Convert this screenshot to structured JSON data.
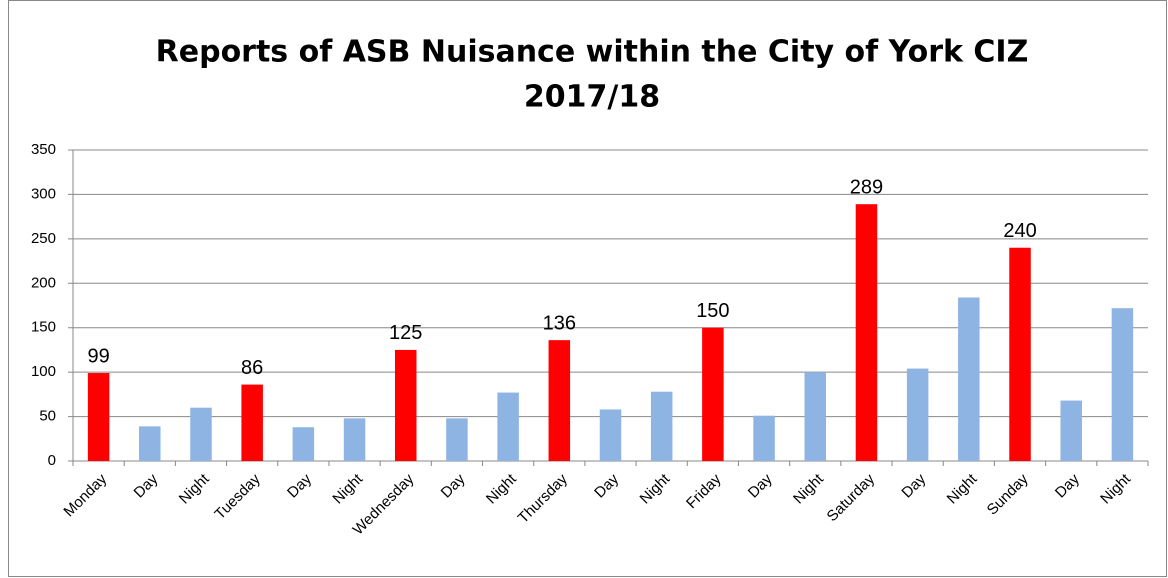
{
  "chart_data": {
    "type": "bar",
    "title": [
      "Reports of ASB Nuisance within the City of York CIZ",
      "2017/18"
    ],
    "categories": [
      "Monday",
      "Day",
      "Night",
      "Tuesday",
      "Day",
      "Night",
      "Wednesday",
      "Day",
      "Night",
      "Thursday",
      "Day",
      "Night",
      "Friday",
      "Day",
      "Night",
      "Saturday",
      "Day",
      "Night",
      "Sunday",
      "Day",
      "Night"
    ],
    "values": [
      99,
      39,
      60,
      86,
      38,
      48,
      125,
      48,
      77,
      136,
      58,
      78,
      150,
      51,
      100,
      289,
      104,
      184,
      240,
      68,
      172
    ],
    "value_labels": [
      "99",
      null,
      null,
      "86",
      null,
      null,
      "125",
      null,
      null,
      "136",
      null,
      null,
      "150",
      null,
      null,
      "289",
      null,
      null,
      "240",
      null,
      null
    ],
    "colors": [
      "#ff0000",
      "#8eb4e3",
      "#8eb4e3",
      "#ff0000",
      "#8eb4e3",
      "#8eb4e3",
      "#ff0000",
      "#8eb4e3",
      "#8eb4e3",
      "#ff0000",
      "#8eb4e3",
      "#8eb4e3",
      "#ff0000",
      "#8eb4e3",
      "#8eb4e3",
      "#ff0000",
      "#8eb4e3",
      "#8eb4e3",
      "#ff0000",
      "#8eb4e3",
      "#8eb4e3"
    ],
    "ylim": [
      0,
      350
    ],
    "yticks": [
      0,
      50,
      100,
      150,
      200,
      250,
      300,
      350
    ],
    "grid": true
  }
}
